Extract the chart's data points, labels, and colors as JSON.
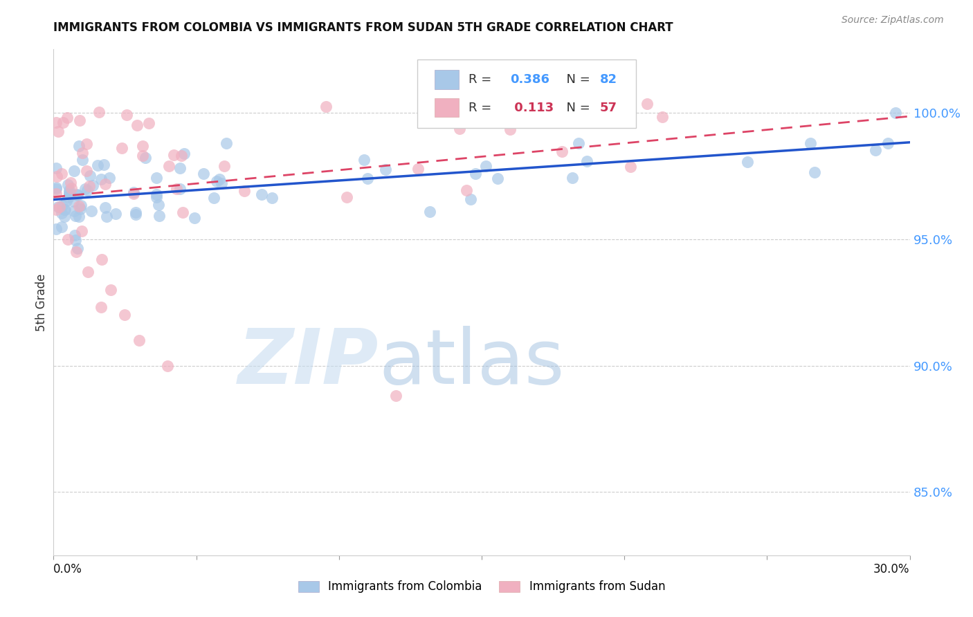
{
  "title": "IMMIGRANTS FROM COLOMBIA VS IMMIGRANTS FROM SUDAN 5TH GRADE CORRELATION CHART",
  "source": "Source: ZipAtlas.com",
  "ylabel": "5th Grade",
  "ytick_labels": [
    "100.0%",
    "95.0%",
    "90.0%",
    "85.0%"
  ],
  "ytick_values": [
    1.0,
    0.95,
    0.9,
    0.85
  ],
  "xmin": 0.0,
  "xmax": 0.3,
  "ymin": 0.825,
  "ymax": 1.025,
  "colombia_R": 0.386,
  "colombia_N": 82,
  "sudan_R": 0.113,
  "sudan_N": 57,
  "colombia_color": "#a8c8e8",
  "sudan_color": "#f0b0c0",
  "colombia_line_color": "#2255cc",
  "sudan_line_color": "#dd4466",
  "watermark_zip_color": "#c8ddf0",
  "watermark_atlas_color": "#a0c0e0",
  "grid_color": "#cccccc",
  "right_tick_color": "#4499ff",
  "colombia_legend_color": "#4499ff",
  "sudan_legend_color": "#cc3355"
}
